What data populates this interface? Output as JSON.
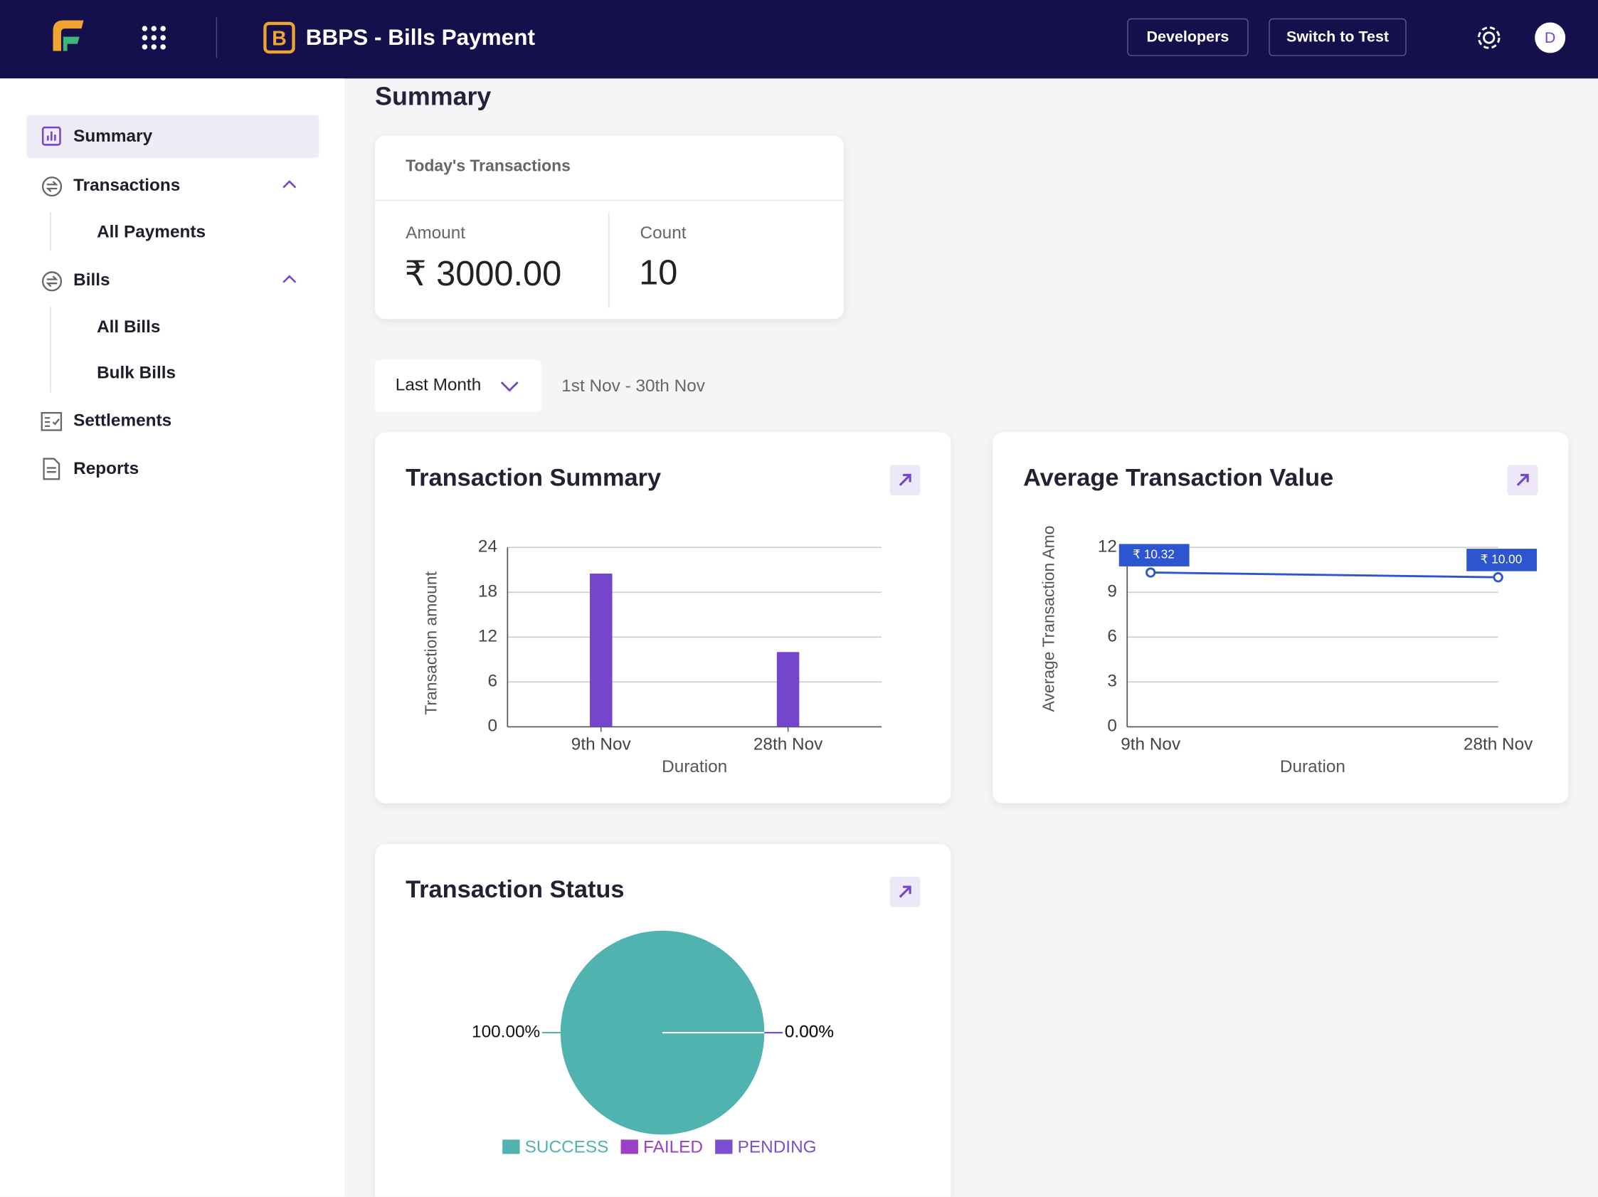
{
  "header": {
    "app_title": "BBPS - Bills Payment",
    "buttons": [
      "Developers",
      "Switch to Test"
    ],
    "avatar": "D"
  },
  "sidebar": {
    "items": [
      {
        "label": "Summary"
      },
      {
        "label": "Transactions",
        "children": [
          "All Payments"
        ]
      },
      {
        "label": "Bills",
        "children": [
          "All Bills",
          "Bulk Bills"
        ]
      },
      {
        "label": "Settlements"
      },
      {
        "label": "Reports"
      }
    ]
  },
  "page_title": "Summary",
  "todays_transactions": {
    "title": "Today's Transactions",
    "amount_label": "Amount",
    "amount": "₹ 3000.00",
    "count_label": "Count",
    "count": 10
  },
  "filter": {
    "period": "Last Month",
    "range": "1st Nov - 30th Nov"
  },
  "chart_data": [
    {
      "type": "bar",
      "title": "Transaction Summary",
      "x_label": "Duration",
      "y_label": "Transaction amount",
      "categories": [
        "9th Nov",
        "28th Nov"
      ],
      "values": [
        20.5,
        10
      ],
      "color": "#7446cc",
      "ylim": [
        0,
        24
      ],
      "yticks": [
        0,
        6,
        12,
        18,
        24
      ],
      "grid": true
    },
    {
      "type": "line",
      "title": "Average Transaction Value",
      "x_label": "Duration",
      "y_label": "Average Transaction Amo",
      "categories": [
        "9th Nov",
        "28th Nov"
      ],
      "values": [
        10.32,
        10.0
      ],
      "value_labels": [
        "₹ 10.32",
        "₹ 10.00"
      ],
      "color": "#2d55d0",
      "ylim": [
        0,
        12
      ],
      "yticks": [
        0,
        3,
        6,
        9,
        12
      ],
      "grid": true
    },
    {
      "type": "pie",
      "title": "Transaction Status",
      "categories": [
        "SUCCESS",
        "FAILED",
        "PENDING"
      ],
      "values": [
        100,
        0,
        0
      ],
      "value_labels": [
        "100.00%",
        "0.00%",
        "0.00%"
      ],
      "colors": [
        "#50b3b0",
        "#9a3fc6",
        "#7a4fd2"
      ],
      "legend": "bottom"
    }
  ]
}
